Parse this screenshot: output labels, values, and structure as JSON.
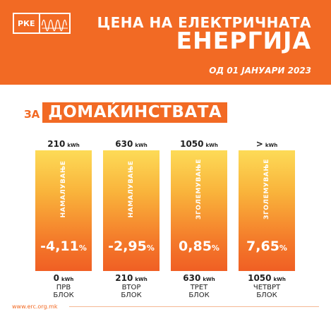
{
  "header": {
    "logo_text": "РКЕ",
    "title_line1": "ЦЕНА НА ЕЛЕКТРИЧНАТА",
    "title_line2": "ЕНЕРГИЈА",
    "date": "ОД 01 ЈАНУАРИ 2023"
  },
  "section": {
    "prefix": "ЗА",
    "title": "ДОМАЌИНСТВАТА"
  },
  "unit": "kWh",
  "columns": [
    {
      "top_value": "210",
      "direction": "НАМАЛУВАЊЕ",
      "change": "-4,11",
      "percent": "%",
      "bottom_value": "0",
      "block_line1": "ПРВ",
      "block_line2": "БЛОК"
    },
    {
      "top_value": "630",
      "direction": "НАМАЛУВАЊЕ",
      "change": "-2,95",
      "percent": "%",
      "bottom_value": "210",
      "block_line1": "ВТОР",
      "block_line2": "БЛОК"
    },
    {
      "top_value": "1050",
      "direction": "ЗГОЛЕМУВАЊЕ",
      "change": "0,85",
      "percent": "%",
      "bottom_value": "630",
      "block_line1": "ТРЕТ",
      "block_line2": "БЛОК"
    },
    {
      "top_value": ">",
      "direction": "ЗГОЛЕМУВАЊЕ",
      "change": "7,65",
      "percent": "%",
      "bottom_value": "1050",
      "block_line1": "ЧЕТВРТ",
      "block_line2": "БЛОК"
    }
  ],
  "footer": {
    "url": "www.erc.org.mk"
  },
  "colors": {
    "brand_orange": "#f26a24",
    "bar_top": "#fddb57",
    "bar_bottom": "#f05f24"
  }
}
